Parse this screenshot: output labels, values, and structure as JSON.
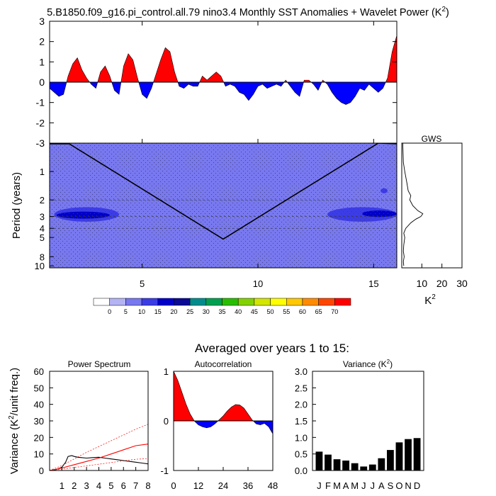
{
  "figure": {
    "title": "5.B1850.f09_g16.pi_control.all.79 nino3.4 Monthly SST Anomalies + Wavelet Power (K",
    "title_sup": "2",
    "title_close": ")",
    "subtitle": "Averaged over years 1 to 15:",
    "colors": {
      "positive": "#ff0000",
      "negative": "#0000ff",
      "power_light": "#b4b4f5",
      "power_mid": "#7878f0",
      "power_strong": "#3c3ce6",
      "bar": "#000000"
    }
  },
  "chart_data": [
    {
      "id": "sst_anomaly",
      "type": "area",
      "title": "",
      "xlabel": "",
      "ylabel": "",
      "xlim": [
        1,
        16
      ],
      "ylim": [
        -3,
        3
      ],
      "yticks": [
        3,
        2,
        1,
        0,
        -1,
        -2,
        -3
      ],
      "x": [
        1.0,
        1.2,
        1.4,
        1.6,
        1.8,
        2.0,
        2.2,
        2.4,
        2.6,
        2.8,
        3.0,
        3.2,
        3.4,
        3.6,
        3.8,
        4.0,
        4.2,
        4.4,
        4.6,
        4.8,
        5.0,
        5.2,
        5.4,
        5.6,
        5.8,
        6.0,
        6.2,
        6.4,
        6.6,
        6.8,
        7.0,
        7.2,
        7.4,
        7.6,
        7.8,
        8.0,
        8.2,
        8.4,
        8.6,
        8.8,
        9.0,
        9.2,
        9.4,
        9.6,
        9.8,
        10.0,
        10.2,
        10.4,
        10.6,
        10.8,
        11.0,
        11.2,
        11.4,
        11.6,
        11.8,
        12.0,
        12.2,
        12.4,
        12.6,
        12.8,
        13.0,
        13.2,
        13.4,
        13.6,
        13.8,
        14.0,
        14.2,
        14.4,
        14.6,
        14.8,
        15.0,
        15.2,
        15.4,
        15.6,
        15.8,
        16.0
      ],
      "values": [
        -0.3,
        -0.5,
        -0.7,
        -0.6,
        0.3,
        0.9,
        1.2,
        0.6,
        0.2,
        -0.1,
        -0.3,
        0.5,
        0.8,
        0.3,
        -0.4,
        -0.6,
        0.8,
        1.4,
        1.1,
        0.2,
        -0.6,
        -0.8,
        -0.3,
        0.4,
        1.1,
        1.7,
        1.5,
        0.5,
        -0.2,
        -0.3,
        -0.1,
        -0.2,
        -0.2,
        0.3,
        0.1,
        0.3,
        0.5,
        0.3,
        -0.2,
        -0.1,
        -0.2,
        -0.5,
        -0.6,
        -0.9,
        -0.6,
        -0.2,
        -0.1,
        -0.3,
        -0.2,
        -0.1,
        -0.2,
        0.1,
        -0.2,
        -0.5,
        -0.7,
        0.1,
        0.1,
        -0.1,
        -0.4,
        0.1,
        -0.1,
        -0.5,
        -0.8,
        -1.0,
        -1.1,
        -1.0,
        -0.7,
        -0.3,
        -0.4,
        -0.1,
        -0.3,
        -0.5,
        -0.3,
        0.2,
        1.5,
        2.3
      ]
    },
    {
      "id": "wavelet_power",
      "type": "heatmap",
      "title": "",
      "xlabel": "",
      "ylabel": "Period (years)",
      "xlim": [
        1,
        16
      ],
      "xticks": [
        5,
        10,
        15
      ],
      "ylim": [
        0.5,
        10.5
      ],
      "yscale": "log",
      "yticks": [
        1,
        2,
        3,
        4,
        5,
        8,
        10
      ],
      "dashed_periods": [
        2,
        3,
        4
      ],
      "stippling": true,
      "contour_levels": [
        0,
        5,
        10,
        15,
        20,
        25,
        30,
        35,
        40,
        45,
        50,
        55,
        60,
        65,
        70
      ],
      "colorbar_colors": [
        "#ffffff",
        "#b4b4f5",
        "#7878f0",
        "#3c3ce6",
        "#0000c8",
        "#0a0a96",
        "#008c8c",
        "#00a050",
        "#28be00",
        "#82d200",
        "#d2e600",
        "#ffff00",
        "#ffc800",
        "#ff8c00",
        "#ff4600",
        "#ff0000"
      ],
      "background_level": 5,
      "regions": [
        {
          "level": 10,
          "x0": 1.2,
          "x1": 4.0,
          "period_center": 2.85,
          "period_lo": 2.35,
          "period_hi": 3.35
        },
        {
          "level": 15,
          "x0": 1.3,
          "x1": 3.6,
          "period_center": 2.9,
          "period_lo": 2.65,
          "period_hi": 3.15
        },
        {
          "level": 10,
          "x0": 13.0,
          "x1": 16.0,
          "period_center": 2.85,
          "period_lo": 2.35,
          "period_hi": 3.35
        },
        {
          "level": 15,
          "x0": 14.5,
          "x1": 16.0,
          "period_center": 2.8,
          "period_lo": 2.6,
          "period_hi": 3.05
        },
        {
          "level": 10,
          "x0": 15.3,
          "x1": 15.6,
          "period_center": 1.6,
          "period_lo": 1.5,
          "period_hi": 1.7
        }
      ],
      "coi": {
        "x": [
          1.8,
          8.5,
          15.2
        ],
        "period": [
          0.5,
          5.2,
          0.5
        ]
      }
    },
    {
      "id": "global_wavelet_spectrum",
      "type": "line",
      "title": "GWS",
      "xlabel": "K",
      "xlabel_sup": "2",
      "xlim": [
        0,
        30
      ],
      "xticks": [
        10,
        20,
        30
      ],
      "period": [
        0.5,
        0.8,
        1.0,
        1.3,
        1.6,
        1.8,
        2.0,
        2.3,
        2.6,
        2.8,
        3.0,
        3.2,
        3.5,
        4.0,
        4.5,
        5.0,
        6.0,
        7.0,
        8.0,
        9.0,
        10.0
      ],
      "values": [
        0.5,
        0.8,
        1.5,
        2.5,
        3.2,
        4.5,
        4.0,
        5.5,
        8.0,
        10.5,
        9.5,
        7.0,
        4.5,
        2.0,
        1.0,
        1.5,
        1.0,
        0.8,
        1.2,
        0.8,
        1.0
      ]
    },
    {
      "id": "power_spectrum",
      "type": "line",
      "title": "Power Spectrum",
      "xlabel": "",
      "ylabel": "Variance (K",
      "ylabel_sup": "2",
      "ylabel_close": "/unit freq.)",
      "xlim": [
        0,
        8
      ],
      "xticks": [
        1,
        2,
        3,
        4,
        5,
        6,
        7,
        8
      ],
      "ylim": [
        0,
        60
      ],
      "yticks": [
        0,
        10,
        20,
        30,
        40,
        50,
        60
      ],
      "series": [
        {
          "id": "spectrum",
          "color": "#000000",
          "dash": "",
          "x": [
            0,
            0.5,
            1.0,
            1.3,
            1.5,
            1.8,
            2.0,
            2.3,
            2.6,
            3.0,
            3.5,
            4.0,
            4.5,
            5.0,
            5.5,
            6.0,
            6.5,
            7.0,
            7.5,
            8.0
          ],
          "values": [
            0,
            0.5,
            2,
            5,
            8.5,
            9,
            8.5,
            8,
            7.8,
            7.5,
            7.8,
            8,
            7.5,
            7,
            6.5,
            6,
            5.5,
            5,
            4.5,
            4
          ]
        },
        {
          "id": "red_noise",
          "color": "#ff0000",
          "dash": "",
          "x": [
            0,
            1,
            2,
            3,
            4,
            5,
            6,
            7,
            8
          ],
          "values": [
            0,
            1.5,
            3.5,
            5.5,
            7.5,
            10,
            12.5,
            15,
            16
          ]
        },
        {
          "id": "upper_bound",
          "color": "#ff0000",
          "dash": "2,2",
          "x": [
            0,
            1,
            2,
            3,
            4,
            5,
            6,
            7,
            8
          ],
          "values": [
            0,
            3,
            7,
            11,
            14.5,
            18,
            21.5,
            25,
            28
          ]
        },
        {
          "id": "lower_bound",
          "color": "#ff0000",
          "dash": "2,2",
          "x": [
            0,
            1,
            2,
            3,
            4,
            5,
            6,
            7,
            8
          ],
          "values": [
            0,
            0.8,
            1.8,
            2.8,
            3.8,
            4.8,
            5.8,
            6.8,
            7.2
          ]
        }
      ]
    },
    {
      "id": "autocorrelation",
      "type": "area",
      "title": "Autocorrelation",
      "xlabel": "",
      "ylabel": "",
      "xlim": [
        0,
        48
      ],
      "xticks": [
        0,
        12,
        24,
        36,
        48
      ],
      "ylim": [
        -1,
        1
      ],
      "yticks": [
        1,
        0,
        -1
      ],
      "x": [
        0,
        2,
        4,
        6,
        8,
        10,
        12,
        14,
        16,
        18,
        20,
        22,
        24,
        26,
        28,
        30,
        32,
        34,
        36,
        38,
        40,
        42,
        44,
        46,
        48
      ],
      "values": [
        1.0,
        0.82,
        0.58,
        0.34,
        0.14,
        0.0,
        -0.08,
        -0.12,
        -0.14,
        -0.12,
        -0.06,
        0.02,
        0.1,
        0.2,
        0.28,
        0.33,
        0.32,
        0.26,
        0.14,
        0.02,
        -0.06,
        -0.08,
        -0.05,
        -0.12,
        -0.26
      ]
    },
    {
      "id": "monthly_variance",
      "type": "bar",
      "title": "Variance (K",
      "title_sup": "2",
      "title_close": ")",
      "xlabel": "",
      "ylabel": "",
      "categories": [
        "J",
        "F",
        "M",
        "A",
        "M",
        "J",
        "J",
        "A",
        "S",
        "O",
        "N",
        "D"
      ],
      "values": [
        0.57,
        0.48,
        0.34,
        0.3,
        0.22,
        0.12,
        0.18,
        0.37,
        0.62,
        0.85,
        0.95,
        0.98
      ],
      "ylim": [
        0,
        3
      ],
      "yticks": [
        0.0,
        0.5,
        1.0,
        1.5,
        2.0,
        2.5,
        3.0
      ]
    }
  ]
}
